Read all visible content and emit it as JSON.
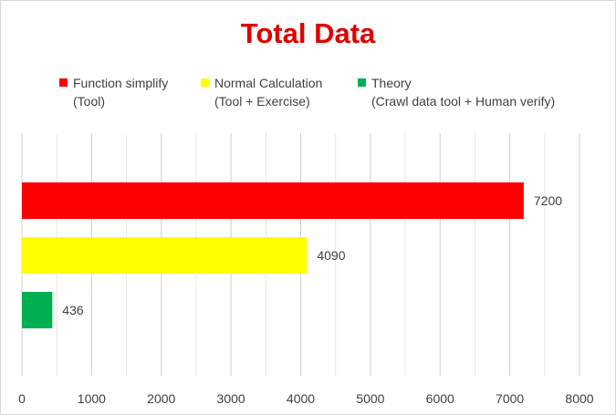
{
  "colors": {
    "red": "#ff0000",
    "yellow": "#ffff00",
    "green": "#00b050",
    "title": "#e00000"
  },
  "chart_data": {
    "type": "bar",
    "orientation": "horizontal",
    "title": "Total Data",
    "categories": [
      "Function simplify (Tool)",
      "Normal Calculation (Tool + Exercise)",
      "Theory (Crawl data tool + Human verify)"
    ],
    "values": [
      7200,
      4090,
      436
    ],
    "bar_colors": [
      "#ff0000",
      "#ffff00",
      "#00b050"
    ],
    "data_labels": [
      "7200",
      "4090",
      "436"
    ],
    "xlim": [
      0,
      8000
    ],
    "x_ticks": [
      0,
      1000,
      2000,
      3000,
      4000,
      5000,
      6000,
      7000,
      8000
    ],
    "x_tick_labels": [
      "0",
      "1000",
      "2000",
      "3000",
      "4000",
      "5000",
      "6000",
      "7000",
      "8000"
    ],
    "grid": true,
    "legend_position": "top",
    "legend": [
      {
        "line1": "Function simplify",
        "line2": "(Tool)",
        "color": "#ff0000"
      },
      {
        "line1": "Normal Calculation",
        "line2": "(Tool + Exercise)",
        "color": "#ffff00"
      },
      {
        "line1": "Theory",
        "line2": "(Crawl data tool + Human verify)",
        "color": "#00b050"
      }
    ]
  }
}
